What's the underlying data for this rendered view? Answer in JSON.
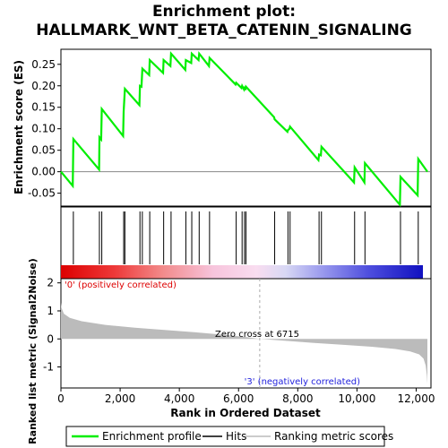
{
  "chart_data": {
    "type": "line",
    "title_line1": "Enrichment plot:",
    "title_line2": "HALLMARK_WNT_BETA_CATENIN_SIGNALING",
    "es_panel": {
      "ylabel": "Enrichment score (ES)",
      "ylim": [
        -0.08,
        0.285
      ],
      "yticks": [
        -0.05,
        0.0,
        0.05,
        0.1,
        0.15,
        0.2,
        0.25
      ],
      "ytick_labels": [
        "-0.05",
        "0.00",
        "0.05",
        "0.10",
        "0.15",
        "0.20",
        "0.25"
      ],
      "series_color": "#00ee00",
      "points": [
        [
          0,
          0.0
        ],
        [
          400,
          -0.033
        ],
        [
          420,
          0.076
        ],
        [
          1290,
          0.005
        ],
        [
          1300,
          0.08
        ],
        [
          1360,
          0.075
        ],
        [
          1380,
          0.146
        ],
        [
          2100,
          0.083
        ],
        [
          2120,
          0.14
        ],
        [
          2160,
          0.193
        ],
        [
          2650,
          0.155
        ],
        [
          2670,
          0.2
        ],
        [
          2720,
          0.198
        ],
        [
          2750,
          0.24
        ],
        [
          2980,
          0.225
        ],
        [
          3000,
          0.26
        ],
        [
          3450,
          0.23
        ],
        [
          3470,
          0.26
        ],
        [
          3700,
          0.246
        ],
        [
          3720,
          0.275
        ],
        [
          4200,
          0.237
        ],
        [
          4220,
          0.26
        ],
        [
          4400,
          0.253
        ],
        [
          4420,
          0.275
        ],
        [
          4650,
          0.26
        ],
        [
          4670,
          0.275
        ],
        [
          5000,
          0.246
        ],
        [
          5020,
          0.265
        ],
        [
          5900,
          0.203
        ],
        [
          5920,
          0.207
        ],
        [
          6100,
          0.195
        ],
        [
          6120,
          0.2
        ],
        [
          6180,
          0.192
        ],
        [
          6200,
          0.198
        ],
        [
          6230,
          0.19
        ],
        [
          6250,
          0.198
        ],
        [
          7200,
          0.127
        ],
        [
          7220,
          0.122
        ],
        [
          7650,
          0.093
        ],
        [
          7670,
          0.097
        ],
        [
          7720,
          0.1
        ],
        [
          7740,
          0.105
        ],
        [
          8700,
          0.027
        ],
        [
          8720,
          0.04
        ],
        [
          8780,
          0.038
        ],
        [
          8800,
          0.058
        ],
        [
          9900,
          -0.025
        ],
        [
          9920,
          0.01
        ],
        [
          10250,
          -0.025
        ],
        [
          10270,
          0.02
        ],
        [
          11450,
          -0.077
        ],
        [
          11470,
          -0.012
        ],
        [
          12050,
          -0.055
        ],
        [
          12070,
          0.03
        ],
        [
          12380,
          0.0
        ]
      ]
    },
    "hits_panel": {
      "hit_positions": [
        420,
        1300,
        1380,
        2120,
        2160,
        2670,
        2750,
        3000,
        3470,
        3720,
        4220,
        4420,
        4670,
        5020,
        5920,
        6120,
        6200,
        6250,
        7220,
        7670,
        7740,
        8720,
        8800,
        9920,
        10270,
        11470,
        12070
      ]
    },
    "metric_panel": {
      "ylabel": "Ranked list metric (Signal2Noise)",
      "ylim": [
        -1.75,
        2.15
      ],
      "yticks": [
        -1,
        0,
        1,
        2
      ],
      "ytick_labels": [
        "-1",
        "0",
        "1",
        "2"
      ],
      "pos_label": "'0' (positively correlated)",
      "neg_label": "'3' (negatively correlated)",
      "zero_cross_label": "Zero cross at 6715",
      "zero_cross": 6715,
      "curve": [
        [
          0,
          1.3
        ],
        [
          20,
          1.1
        ],
        [
          100,
          0.9
        ],
        [
          300,
          0.75
        ],
        [
          700,
          0.63
        ],
        [
          1500,
          0.5
        ],
        [
          2500,
          0.4
        ],
        [
          3500,
          0.32
        ],
        [
          4500,
          0.24
        ],
        [
          5500,
          0.15
        ],
        [
          6300,
          0.06
        ],
        [
          6715,
          0.0
        ],
        [
          7500,
          -0.06
        ],
        [
          8500,
          -0.14
        ],
        [
          9500,
          -0.21
        ],
        [
          10500,
          -0.28
        ],
        [
          11300,
          -0.36
        ],
        [
          11800,
          -0.45
        ],
        [
          12100,
          -0.55
        ],
        [
          12250,
          -0.7
        ],
        [
          12320,
          -0.95
        ],
        [
          12360,
          -1.3
        ],
        [
          12380,
          -1.6
        ]
      ]
    },
    "xaxis": {
      "label": "Rank in Ordered Dataset",
      "xlim": [
        0,
        12500
      ],
      "ticks": [
        0,
        2000,
        4000,
        6000,
        8000,
        10000,
        12000
      ],
      "tick_labels": [
        "0",
        "2,000",
        "4,000",
        "6,000",
        "8,000",
        "10,000",
        "12,000"
      ]
    },
    "legend": {
      "placement": "bottom",
      "items": [
        {
          "label": "Enrichment profile",
          "color": "#00ee00"
        },
        {
          "label": "Hits",
          "color": "#000000"
        },
        {
          "label": "Ranking metric scores",
          "color": "#bbbbbb"
        }
      ]
    }
  }
}
